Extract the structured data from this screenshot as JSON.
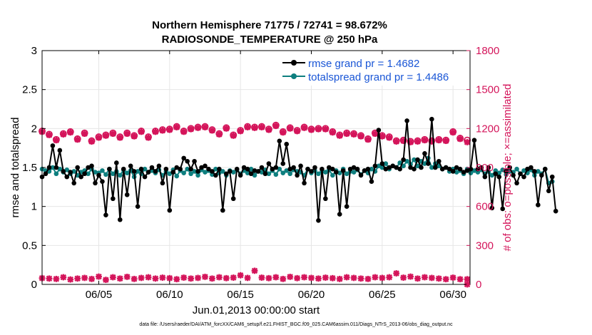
{
  "chart_data": {
    "type": "line",
    "title_line1": "Northern Hemisphere 71775 / 72741 = 98.672%",
    "title_line2": "RADIOSONDE_TEMPERATURE @ 250 hPa",
    "xlabel": "Jun.01,2013 00:00:00 start",
    "ylabel_left": "rmse and totalspread",
    "ylabel_right": "# of obs: o=possible; ×=assimilated",
    "xlim": [
      1,
      31.2
    ],
    "ylim_left": [
      0,
      3
    ],
    "ylim_right": [
      0,
      1800
    ],
    "x_ticks": [
      5,
      10,
      15,
      20,
      25,
      30
    ],
    "x_tick_labels": [
      "06/05",
      "06/10",
      "06/15",
      "06/20",
      "06/25",
      "06/30"
    ],
    "y_left_ticks": [
      0,
      0.5,
      1,
      1.5,
      2,
      2.5,
      3
    ],
    "y_left_tick_labels": [
      "0",
      "0.5",
      "1",
      "1.5",
      "2",
      "2.5",
      "3"
    ],
    "y_right_ticks": [
      0,
      300,
      600,
      900,
      1200,
      1500,
      1800
    ],
    "y_right_tick_labels": [
      "0",
      "300",
      "600",
      "900",
      "1200",
      "1500",
      "1800"
    ],
    "x_start": 1.0,
    "x_step": 0.25,
    "series": [
      {
        "name": "rmse grand pr = 1.4682",
        "color": "#000000",
        "values": [
          1.38,
          1.42,
          1.5,
          1.78,
          1.5,
          1.72,
          1.45,
          1.38,
          1.44,
          1.3,
          1.5,
          1.38,
          1.42,
          1.5,
          1.52,
          1.3,
          1.4,
          1.32,
          0.89,
          1.48,
          1.1,
          1.56,
          0.83,
          1.48,
          1.15,
          1.52,
          1.45,
          1.0,
          1.48,
          1.38,
          1.44,
          1.5,
          1.45,
          1.52,
          1.3,
          1.48,
          0.95,
          1.44,
          1.5,
          1.48,
          1.62,
          1.58,
          1.48,
          1.58,
          1.45,
          1.5,
          1.52,
          1.48,
          1.45,
          1.4,
          1.48,
          0.95,
          1.42,
          1.45,
          1.1,
          1.48,
          1.4,
          1.5,
          1.48,
          1.42,
          1.46,
          1.45,
          1.5,
          1.42,
          1.55,
          1.48,
          1.5,
          1.84,
          1.55,
          1.8,
          1.48,
          1.5,
          1.4,
          1.52,
          1.3,
          1.48,
          1.45,
          1.5,
          0.82,
          1.48,
          1.1,
          1.5,
          1.48,
          1.44,
          0.9,
          1.46,
          1.0,
          1.48,
          1.5,
          1.48,
          1.4,
          1.46,
          1.48,
          1.32,
          1.52,
          1.98,
          1.55,
          1.48,
          1.5,
          1.52,
          1.5,
          1.48,
          1.6,
          2.1,
          1.5,
          1.48,
          1.6,
          1.5,
          1.68,
          1.55,
          2.12,
          1.5,
          1.58,
          1.48,
          1.5,
          1.48,
          1.45,
          1.5,
          1.48,
          1.44,
          1.46,
          1.48,
          1.85,
          1.48,
          1.5,
          1.38,
          1.5,
          0.98,
          1.42,
          1.38,
          0.97,
          1.45,
          1.5,
          1.4,
          1.3,
          1.42,
          1.38,
          1.48,
          1.5,
          1.45,
          1.02,
          1.4,
          1.48,
          1.2,
          1.38,
          0.94
        ],
        "marker": "circle"
      },
      {
        "name": "totalspread grand pr = 1.4486",
        "color": "#0e7f7f",
        "values": [
          1.48,
          1.46,
          1.45,
          1.5,
          1.42,
          1.48,
          1.44,
          1.47,
          1.42,
          1.45,
          1.4,
          1.44,
          1.46,
          1.42,
          1.48,
          1.44,
          1.43,
          1.46,
          1.41,
          1.48,
          1.42,
          1.45,
          1.4,
          1.47,
          1.43,
          1.46,
          1.38,
          1.45,
          1.42,
          1.48,
          1.44,
          1.46,
          1.43,
          1.47,
          1.4,
          1.45,
          1.42,
          1.47,
          1.39,
          1.46,
          1.43,
          1.48,
          1.42,
          1.45,
          1.4,
          1.47,
          1.44,
          1.46,
          1.41,
          1.48,
          1.43,
          1.45,
          1.4,
          1.46,
          1.44,
          1.47,
          1.42,
          1.46,
          1.43,
          1.48,
          1.4,
          1.45,
          1.44,
          1.47,
          1.42,
          1.46,
          1.41,
          1.48,
          1.43,
          1.46,
          1.42,
          1.47,
          1.45,
          1.44,
          1.4,
          1.48,
          1.43,
          1.46,
          1.42,
          1.45,
          1.44,
          1.47,
          1.4,
          1.46,
          1.43,
          1.48,
          1.42,
          1.45,
          1.44,
          1.47,
          1.41,
          1.46,
          1.43,
          1.48,
          1.45,
          1.52,
          1.5,
          1.55,
          1.48,
          1.52,
          1.5,
          1.56,
          1.52,
          1.58,
          1.54,
          1.6,
          1.52,
          1.58,
          1.55,
          1.62,
          1.5,
          1.55,
          1.52,
          1.48,
          1.5,
          1.45,
          1.48,
          1.44,
          1.46,
          1.42,
          1.48,
          1.43,
          1.46,
          1.44,
          1.47,
          1.42,
          1.45,
          1.4,
          1.46,
          1.43,
          1.47,
          1.41,
          1.45,
          1.44,
          1.48,
          1.42,
          1.46,
          1.43,
          1.47,
          1.4,
          1.45,
          1.42,
          1.48,
          1.3,
          1.32
        ],
        "marker": "circle"
      },
      {
        "name": "obs possible",
        "axis": "right",
        "color": "#d4145a",
        "marker": "circle",
        "x_start": 1.0,
        "x_step": 0.5,
        "values": [
          1180,
          1155,
          1115,
          1160,
          1175,
          1120,
          1165,
          1105,
          1135,
          1150,
          1165,
          1135,
          1165,
          1145,
          1180,
          1135,
          1180,
          1190,
          1195,
          1215,
          1180,
          1200,
          1210,
          1215,
          1190,
          1160,
          1205,
          1150,
          1185,
          1215,
          1210,
          1215,
          1195,
          1225,
          1175,
          1205,
          1185,
          1210,
          1195,
          1200,
          1200,
          1175,
          1150,
          1165,
          1160,
          1145,
          1120,
          1165,
          1145,
          1135,
          1105,
          1110,
          1100,
          1105,
          1115,
          1105,
          1115,
          1110,
          1175,
          1125,
          1110
        ],
        "ghost_circles": true
      },
      {
        "name": "obs assimilated",
        "axis": "right",
        "color": "#d4145a",
        "marker": "x",
        "x_start": 1.0,
        "x_step": 0.5,
        "values": [
          1175,
          1150,
          1110,
          1155,
          1170,
          1115,
          1160,
          1100,
          1130,
          1145,
          1160,
          1130,
          1160,
          1140,
          1175,
          1130,
          1175,
          1185,
          1190,
          1210,
          1175,
          1195,
          1205,
          1210,
          1185,
          1155,
          1200,
          1145,
          1180,
          1210,
          1205,
          1210,
          1190,
          1220,
          1170,
          1200,
          1180,
          1205,
          1190,
          1195,
          1195,
          1170,
          1145,
          1160,
          1155,
          1140,
          1115,
          1160,
          1140,
          1130,
          1100,
          1105,
          1095,
          1100,
          1110,
          1100,
          1110,
          1105,
          1170,
          1120,
          1095
        ]
      },
      {
        "name": "obs low assimilated",
        "axis": "right",
        "color": "#d4145a",
        "marker": "x",
        "x_start": 1.0,
        "x_step": 0.5,
        "values": [
          48,
          45,
          42,
          55,
          38,
          45,
          50,
          42,
          60,
          35,
          55,
          45,
          58,
          42,
          50,
          55,
          45,
          52,
          48,
          40,
          52,
          45,
          50,
          58,
          45,
          55,
          48,
          52,
          70,
          50,
          105,
          52,
          48,
          55,
          42,
          58,
          48,
          55,
          50,
          45,
          52,
          48,
          42,
          55,
          50,
          45,
          42,
          55,
          50,
          55,
          85,
          52,
          60,
          45,
          55,
          50,
          45,
          40,
          52,
          40,
          40
        ],
        "last_value_x": 31.0,
        "last_value": 0
      }
    ],
    "legend_position": "top-right"
  },
  "footer": "data file: /Users/raeder/DAI/ATM_forcXX/CAM6_setup/f.e21.FHIST_BGC.f09_025.CAM6assim.011/Diags_NTrS_2013-06/obs_diag_output.nc"
}
